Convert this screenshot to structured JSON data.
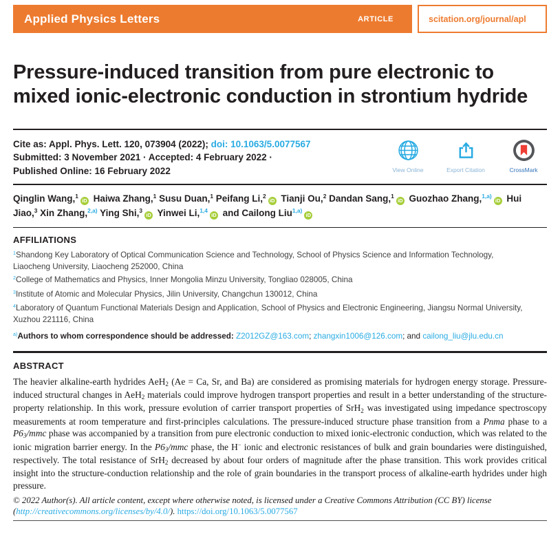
{
  "header": {
    "journal": "Applied Physics Letters",
    "article_tag": "ARTICLE",
    "site": "scitation.org/journal/apl"
  },
  "title": "Pressure-induced transition from pure electronic to mixed ionic-electronic conduction in strontium hydride",
  "cite": {
    "line1": [
      {
        "t": "Cite as: Appl. Phys. Lett. "
      },
      {
        "t": "120",
        "s": "b"
      },
      {
        "t": ", 073904 (2022); "
      },
      {
        "t": "doi: 10.1063/5.0077567",
        "s": "link"
      }
    ],
    "line2": "Submitted: 3 November 2021 · Accepted: 4 February 2022 ·",
    "line3": "Published Online: 16 February 2022"
  },
  "actions": {
    "view_online": "View Online",
    "export_citation": "Export Citation",
    "crossmark": "CrossMark"
  },
  "authors": [
    {
      "t": "Qinglin Wang,"
    },
    {
      "t": "1",
      "s": "sup"
    },
    {
      "s": "orcid"
    },
    {
      "t": " Haiwa Zhang,"
    },
    {
      "t": "1",
      "s": "sup"
    },
    {
      "t": " Susu Duan,"
    },
    {
      "t": "1",
      "s": "sup"
    },
    {
      "t": " Peifang Li,"
    },
    {
      "t": "2",
      "s": "sup"
    },
    {
      "s": "orcid"
    },
    {
      "t": " Tianji Ou,"
    },
    {
      "t": "2",
      "s": "sup"
    },
    {
      "t": " Dandan Sang,"
    },
    {
      "t": "1",
      "s": "sup"
    },
    {
      "s": "orcid"
    },
    {
      "t": " Guozhao Zhang,"
    },
    {
      "t": "1,a)",
      "s": "sup link"
    },
    {
      "s": "orcid"
    },
    {
      "t": " Hui Jiao,"
    },
    {
      "t": "3",
      "s": "sup"
    },
    {
      "t": " Xin Zhang,"
    },
    {
      "t": "2,a)",
      "s": "sup link"
    },
    {
      "t": " Ying Shi,"
    },
    {
      "t": "3",
      "s": "sup"
    },
    {
      "s": "orcid"
    },
    {
      "t": " Yinwei Li,"
    },
    {
      "t": "1,4",
      "s": "sup link"
    },
    {
      "s": "orcid"
    },
    {
      "t": " and Cailong Liu"
    },
    {
      "t": "1,a)",
      "s": "sup link"
    },
    {
      "s": "orcid"
    }
  ],
  "affiliations": {
    "heading": "AFFILIATIONS",
    "items": [
      [
        {
          "t": "1",
          "s": "sup link"
        },
        {
          "t": "Shandong Key Laboratory of Optical Communication Science and Technology, School of Physics Science and Information Technology, Liaocheng University, Liaocheng 252000, China"
        }
      ],
      [
        {
          "t": "2",
          "s": "sup link"
        },
        {
          "t": "College of Mathematics and Physics, Inner Mongolia Minzu University, Tongliao 028005, China"
        }
      ],
      [
        {
          "t": "3",
          "s": "sup link"
        },
        {
          "t": "Institute of Atomic and Molecular Physics, Jilin University, Changchun 130012, China"
        }
      ],
      [
        {
          "t": "4",
          "s": "sup link"
        },
        {
          "t": "Laboratory of Quantum Functional Materials Design and Application, School of Physics and Electronic Engineering, Jiangsu Normal University, Xuzhou 221116, China"
        }
      ]
    ]
  },
  "correspondence": [
    {
      "t": "a)",
      "s": "sup link"
    },
    {
      "t": "Authors to whom correspondence should be addressed: ",
      "s": "b"
    },
    {
      "t": "Z2012GZ@163.com",
      "s": "link"
    },
    {
      "t": "; "
    },
    {
      "t": "zhangxin1006@126.com",
      "s": "link"
    },
    {
      "t": "; and "
    },
    {
      "t": "cailong_liu@jlu.edu.cn",
      "s": "link"
    }
  ],
  "abstract": {
    "heading": "ABSTRACT",
    "body": [
      {
        "t": "The heavier alkaline-earth hydrides AeH"
      },
      {
        "t": "2",
        "s": "sub"
      },
      {
        "t": " (Ae = Ca, Sr, and Ba) are considered as promising materials for hydrogen energy storage. Pressure-induced structural changes in AeH"
      },
      {
        "t": "2",
        "s": "sub"
      },
      {
        "t": " materials could improve hydrogen transport properties and result in a better understanding of the structure-property relationship. In this work, pressure evolution of carrier transport properties of SrH"
      },
      {
        "t": "2",
        "s": "sub"
      },
      {
        "t": " was investigated using impedance spectroscopy measurements at room temperature and first-principles calculations. The pressure-induced structure phase transition from a "
      },
      {
        "t": "Pnma",
        "s": "i"
      },
      {
        "t": " phase to a "
      },
      {
        "t": "P6",
        "s": "i"
      },
      {
        "t": "3",
        "s": "sub i"
      },
      {
        "t": "/mmc",
        "s": "i"
      },
      {
        "t": " phase was accompanied by a transition from pure electronic conduction to mixed ionic-electronic conduction, which was related to the ionic migration barrier energy. In the "
      },
      {
        "t": "P6",
        "s": "i"
      },
      {
        "t": "3",
        "s": "sub i"
      },
      {
        "t": "/mmc",
        "s": "i"
      },
      {
        "t": " phase, the H"
      },
      {
        "t": "−",
        "s": "sup"
      },
      {
        "t": " ionic and electronic resistances of bulk and grain boundaries were distinguished, respectively. The total resistance of SrH"
      },
      {
        "t": "2",
        "s": "sub"
      },
      {
        "t": " decreased by about four orders of magnitude after the phase transition. This work provides critical insight into the structure-conduction relationship and the role of grain boundaries in the transport process of alkaline-earth hydrides under high pressure."
      }
    ]
  },
  "copyright": [
    {
      "t": "© 2022 Author(s). All article content, except where otherwise noted, is licensed under a Creative Commons Attribution (CC BY) license (",
      "s": "i"
    },
    {
      "t": "http://creativecommons.org/licenses/by/4.0/",
      "s": "i link"
    },
    {
      "t": "). ",
      "s": "i"
    },
    {
      "t": "https://doi.org/10.1063/5.0077567",
      "s": "link"
    }
  ],
  "colors": {
    "brand_orange": "#ed7b2f",
    "link_cyan": "#29abe2",
    "orcid_green": "#a6ce39",
    "crossmark_red": "#ee3e36",
    "crossmark_gray": "#55565a",
    "action_label_blue": "#8ab4d6"
  }
}
